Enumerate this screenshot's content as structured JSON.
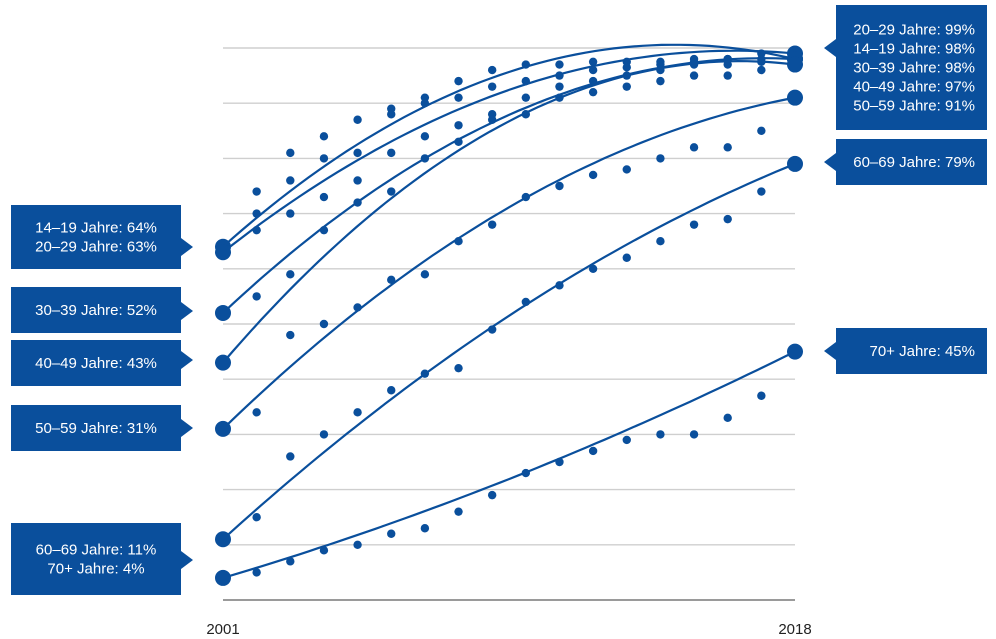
{
  "chart_data": {
    "type": "line",
    "x_labels": [
      "2001",
      "2018"
    ],
    "x": [
      2001,
      2002,
      2003,
      2004,
      2005,
      2006,
      2007,
      2008,
      2009,
      2010,
      2011,
      2012,
      2013,
      2014,
      2015,
      2016,
      2017,
      2018
    ],
    "ylim": [
      0,
      100
    ],
    "grid": true,
    "colors": {
      "series": "#0a4f9c",
      "grid": "#cfcfcf",
      "axis": "#9a9a9a",
      "label_text": "#ffffff"
    },
    "series": [
      {
        "name": "14–19 Jahre",
        "values": [
          64,
          70,
          81,
          84,
          87,
          89,
          91,
          94,
          96,
          97,
          97,
          97.5,
          97.5,
          97.5,
          97.5,
          98,
          98,
          98
        ]
      },
      {
        "name": "20–29 Jahre",
        "values": [
          63,
          74,
          76,
          80,
          81,
          88,
          90,
          91,
          93,
          94,
          95,
          96,
          96.5,
          97,
          98,
          98,
          99,
          99
        ]
      },
      {
        "name": "30–39 Jahre",
        "values": [
          52,
          67,
          70,
          73,
          76,
          81,
          84,
          86,
          88,
          91,
          93,
          94,
          95,
          96,
          97,
          97,
          97.5,
          98
        ]
      },
      {
        "name": "40–49 Jahre",
        "values": [
          43,
          55,
          59,
          67,
          72,
          74,
          80,
          83,
          87,
          88,
          91,
          92,
          93,
          94,
          95,
          95,
          96,
          97
        ]
      },
      {
        "name": "50–59 Jahre",
        "values": [
          31,
          34,
          48,
          50,
          53,
          58,
          59,
          65,
          68,
          73,
          75,
          77,
          78,
          80,
          82,
          82,
          85,
          91
        ]
      },
      {
        "name": "60–69 Jahre",
        "values": [
          11,
          15,
          26,
          30,
          34,
          38,
          41,
          42,
          49,
          54,
          57,
          60,
          62,
          65,
          68,
          69,
          74,
          79
        ]
      },
      {
        "name": "70+ Jahre",
        "values": [
          4,
          5,
          7,
          9,
          10,
          12,
          13,
          16,
          19,
          23,
          25,
          27,
          29,
          30,
          30,
          33,
          37,
          45
        ]
      }
    ],
    "start_labels": [
      {
        "lines": [
          "14–19 Jahre: 64%",
          "20–29 Jahre: 63%"
        ]
      },
      {
        "lines": [
          "30–39 Jahre: 52%"
        ]
      },
      {
        "lines": [
          "40–49 Jahre: 43%"
        ]
      },
      {
        "lines": [
          "50–59 Jahre: 31%"
        ]
      },
      {
        "lines": [
          "60–69 Jahre: 11%",
          "70+ Jahre: 4%"
        ]
      }
    ],
    "end_labels": [
      {
        "lines": [
          "20–29 Jahre: 99%",
          "14–19 Jahre: 98%",
          "30–39 Jahre: 98%",
          "40–49 Jahre: 97%",
          "50–59 Jahre: 91%"
        ]
      },
      {
        "lines": [
          "60–69 Jahre: 79%"
        ]
      },
      {
        "lines": [
          "70+ Jahre: 45%"
        ]
      }
    ]
  }
}
